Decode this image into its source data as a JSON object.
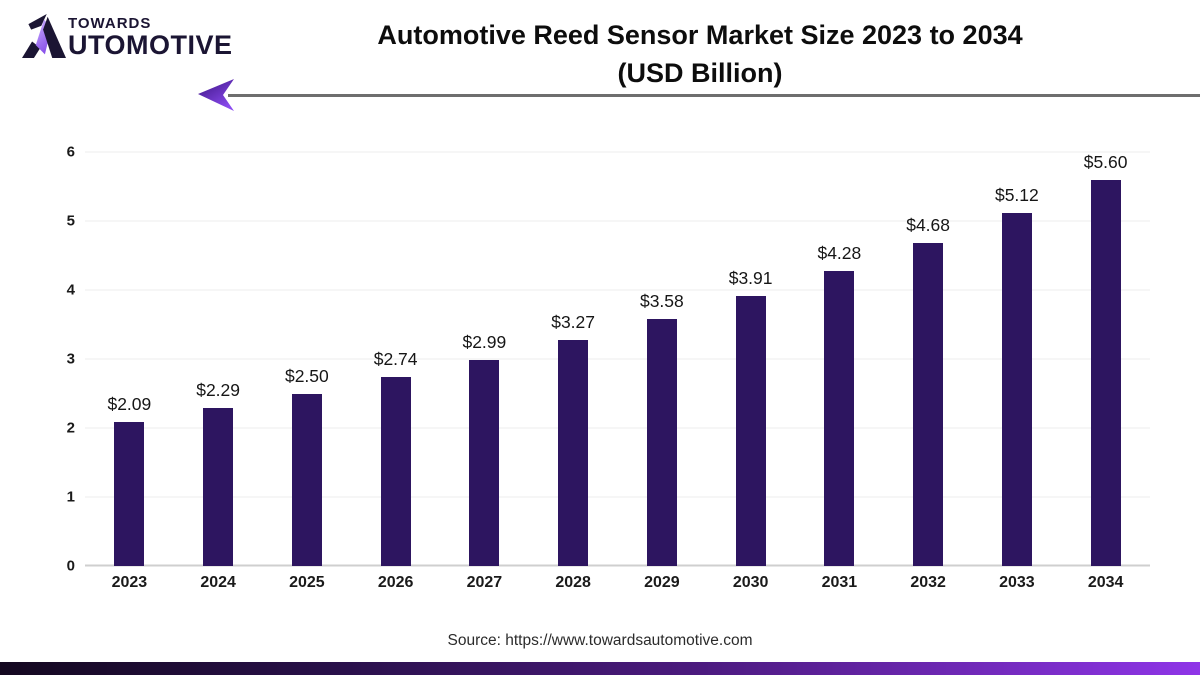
{
  "logo": {
    "top_text": "TOWARDS",
    "bottom_text": "UTOMOTIVE",
    "stylized_letter": "A",
    "dark_color": "#1b1533",
    "accent_color": "#a078f0"
  },
  "title": {
    "line1": "Automotive Reed Sensor Market Size 2023 to 2034",
    "line2": "(USD Billion)"
  },
  "chart_data": {
    "type": "bar",
    "title": "Automotive Reed Sensor Market Size 2023 to 2034 (USD Billion)",
    "categories": [
      "2023",
      "2024",
      "2025",
      "2026",
      "2027",
      "2028",
      "2029",
      "2030",
      "2031",
      "2032",
      "2033",
      "2034"
    ],
    "values": [
      2.09,
      2.29,
      2.5,
      2.74,
      2.99,
      3.27,
      3.58,
      3.91,
      4.28,
      4.68,
      5.12,
      5.6
    ],
    "value_labels": [
      "$2.09",
      "$2.29",
      "$2.50",
      "$2.74",
      "$2.99",
      "$3.27",
      "$3.58",
      "$3.91",
      "$4.28",
      "$4.68",
      "$5.12",
      "$5.60"
    ],
    "xlabel": "",
    "ylabel": "",
    "yticks": [
      0,
      1,
      2,
      3,
      4,
      5,
      6
    ],
    "ylim": [
      0,
      6
    ],
    "grid": true,
    "legend_position": "none",
    "bar_color": "#2d1560",
    "gridline_color": "#ececec",
    "baseline_color": "#cfcfcf"
  },
  "footer": {
    "source_text": "Source: https://www.towardsautomotive.com",
    "gradient_left": "#140820",
    "gradient_right": "#8f35e8"
  },
  "decor": {
    "arrow_line_color": "#6e6e6e",
    "arrow_head_colors": [
      "#3b1380",
      "#8b4bf0"
    ]
  }
}
